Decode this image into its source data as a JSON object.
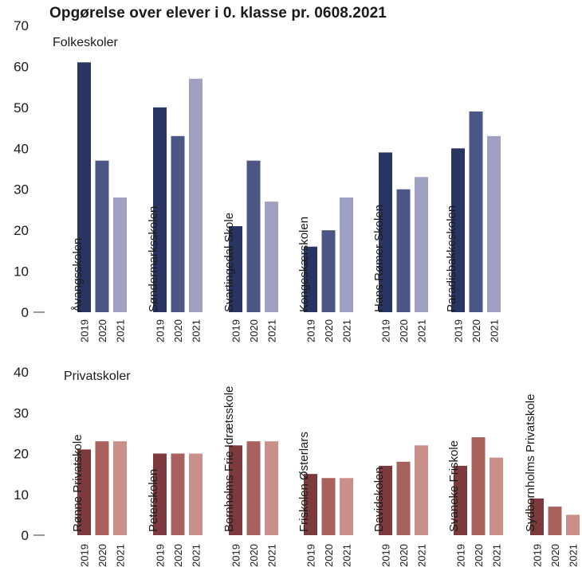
{
  "title": "Opgørelse over elever i 0. klasse pr. 0608.2021",
  "chart_data": [
    {
      "type": "bar",
      "label": "Folkeskoler",
      "ylim": [
        0,
        70
      ],
      "yticks": [
        0,
        10,
        20,
        30,
        40,
        50,
        60,
        70
      ],
      "years": [
        "2019",
        "2020",
        "2021"
      ],
      "colors": [
        "#283562",
        "#4d5785",
        "#9fa0c2"
      ],
      "categories": [
        "Åvangsskolen",
        "Søndermarksskolen",
        "Svartingedal Skole",
        "Kongeskærskolen",
        "Hans Rømer Skolen",
        "Paradisbakkeskolen"
      ],
      "values": [
        [
          61,
          37,
          28
        ],
        [
          50,
          43,
          57
        ],
        [
          21,
          37,
          27
        ],
        [
          16,
          20,
          28
        ],
        [
          39,
          30,
          33
        ],
        [
          40,
          49,
          43
        ]
      ]
    },
    {
      "type": "bar",
      "label": "Privatskoler",
      "ylim": [
        0,
        40
      ],
      "yticks": [
        0,
        10,
        20,
        30,
        40
      ],
      "years": [
        "2019",
        "2020",
        "2021"
      ],
      "colors": [
        "#7d3a3c",
        "#a9615d",
        "#c9908a"
      ],
      "categories": [
        "Rønne Privatskole",
        "Peterskolen",
        "Bornholms Frie Idrætsskole",
        "Friskolen Østerlars",
        "Davidskolen",
        "Svaneke Friskole",
        "Sydbornholms Privatskole"
      ],
      "values": [
        [
          21,
          23,
          23
        ],
        [
          20,
          20,
          20
        ],
        [
          22,
          23,
          23
        ],
        [
          15,
          14,
          14
        ],
        [
          17,
          18,
          22
        ],
        [
          17,
          24,
          19
        ],
        [
          9,
          7,
          5
        ]
      ]
    }
  ]
}
